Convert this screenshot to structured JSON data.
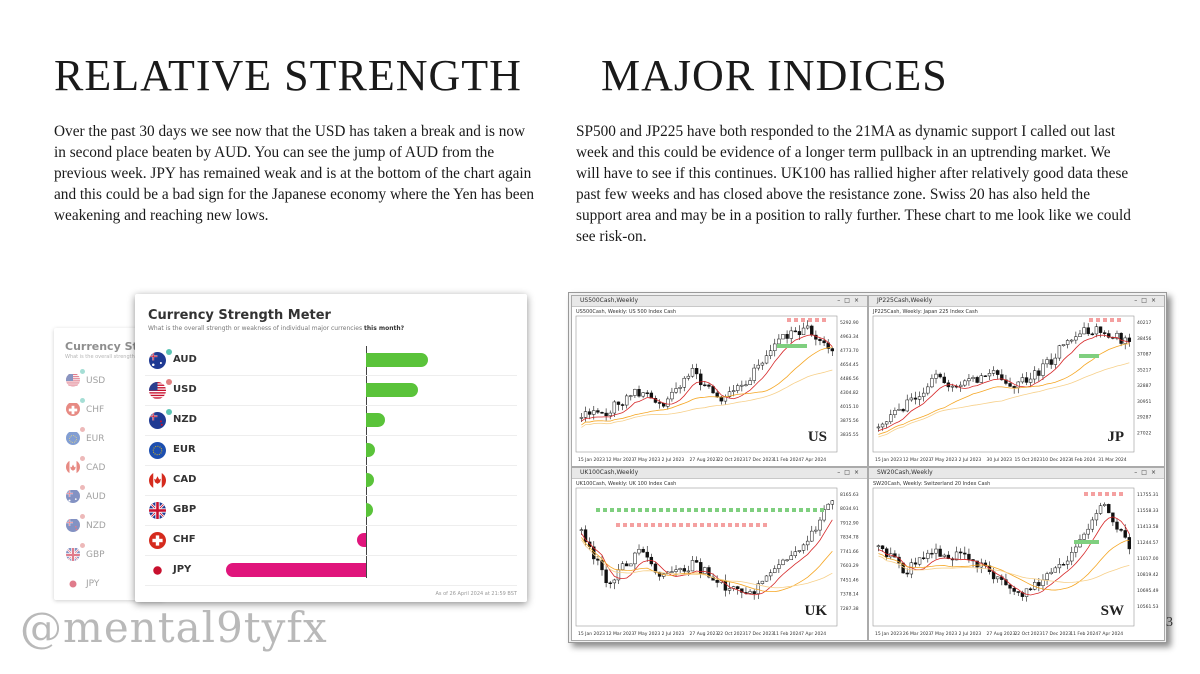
{
  "headings": {
    "left": "RELATIVE STRENGTH",
    "right": "MAJOR INDICES"
  },
  "paragraphs": {
    "left": "Over the past 30 days we see now that the USD has taken a break and is now in second place beaten by AUD.  You can see the jump of AUD from the previous week.   JPY has remained weak and is at the bottom of the chart again and this could be a bad sign for the Japanese economy where the Yen has been weakening and reaching new lows.",
    "right": "SP500 and JP225 have both responded to the 21MA as dynamic support I called out last week and this could be evidence of a longer term pullback in an uptrending market. We will have to see if this continues.  UK100 has rallied higher after relatively good data these past few weeks and has closed above the resistance zone. Swiss 20 has also held the support area and may be in a position to rally further.  These chart to me look like we could see risk-on."
  },
  "meter_back": {
    "title": "Currency Streng",
    "subtitle": "What is the overall strength or w",
    "rows": [
      {
        "code": "USD",
        "flag": "us",
        "dot": "#5cc4b4"
      },
      {
        "code": "CHF",
        "flag": "ch",
        "dot": "#5cc4b4"
      },
      {
        "code": "EUR",
        "flag": "eu",
        "dot": "#e08080"
      },
      {
        "code": "CAD",
        "flag": "ca",
        "dot": "#e08080"
      },
      {
        "code": "AUD",
        "flag": "au",
        "dot": "#e08080"
      },
      {
        "code": "NZD",
        "flag": "nz",
        "dot": "#e08080"
      },
      {
        "code": "GBP",
        "flag": "gb",
        "dot": "#e08080"
      },
      {
        "code": "JPY",
        "flag": "jp",
        "dot": ""
      }
    ]
  },
  "meter": {
    "title": "Currency Strength Meter",
    "subtitle": "What is the overall strength or weakness of individual major currencies",
    "subtitle_bold": "this month?",
    "as_of": "As of 26 April 2024 at 21:59 BST",
    "positive_color": "#5ac33a",
    "negative_color": "#e0157c",
    "rows": [
      {
        "code": "AUD",
        "flag": "au",
        "dot": "#5cc4b4",
        "strength": 62
      },
      {
        "code": "USD",
        "flag": "us",
        "dot": "#e08080",
        "strength": 52
      },
      {
        "code": "NZD",
        "flag": "nz",
        "dot": "#5cc4b4",
        "strength": 19
      },
      {
        "code": "EUR",
        "flag": "eu",
        "dot": "",
        "strength": 9
      },
      {
        "code": "CAD",
        "flag": "ca",
        "dot": "",
        "strength": 8
      },
      {
        "code": "GBP",
        "flag": "gb",
        "dot": "",
        "strength": 7
      },
      {
        "code": "CHF",
        "flag": "ch",
        "dot": "",
        "strength": -9
      },
      {
        "code": "JPY",
        "flag": "jp",
        "dot": "",
        "strength": -140
      }
    ]
  },
  "charts": [
    {
      "id": "us",
      "window_title": "US500Cash,Weekly",
      "subtitle": "US500Cash, Weekly:  US 500 Index Cash",
      "label": "US",
      "prices": [
        "5292.90",
        "4963.34",
        "4773.70",
        "4654.45",
        "4486.56",
        "4304.82",
        "4015.10",
        "3875.56",
        "3835.55"
      ],
      "dates": [
        "15 Jan 2023",
        "12 Mar 2023",
        "7 May 2023",
        "2 Jul 2023",
        "27 Aug 2023",
        "22 Oct 2023",
        "17 Dec 2023",
        "11 Feb 2024",
        "7 Apr 2024"
      ]
    },
    {
      "id": "jp",
      "window_title": "JP225Cash,Weekly",
      "subtitle": "JP225Cash, Weekly:  Japan 225 Index Cash",
      "label": "JP",
      "prices": [
        "40217",
        "38456",
        "37087",
        "35217",
        "32887",
        "30951",
        "29287",
        "27022"
      ],
      "dates": [
        "15 Jan 2023",
        "12 Mar 2023",
        "7 May 2023",
        "2 Jul 2023",
        "30 Jul 2023",
        "15 Oct 2023",
        "10 Dec 2023",
        "4 Feb 2024",
        "31 Mar 2024"
      ]
    },
    {
      "id": "uk",
      "window_title": "UK100Cash,Weekly",
      "subtitle": "UK100Cash, Weekly:  UK 100 Index Cash",
      "label": "UK",
      "prices": [
        "8165.63",
        "8034.91",
        "7912.90",
        "7834.78",
        "7741.66",
        "7603.29",
        "7451.46",
        "7378.14",
        "7287.38"
      ],
      "dates": [
        "15 Jan 2023",
        "12 Mar 2023",
        "7 May 2023",
        "2 Jul 2023",
        "27 Aug 2023",
        "22 Oct 2023",
        "17 Dec 2023",
        "11 Feb 2024",
        "7 Apr 2024"
      ]
    },
    {
      "id": "sw",
      "window_title": "SW20Cash,Weekly",
      "subtitle": "SW20Cash, Weekly:  Switzerland 20 Index Cash",
      "label": "SW",
      "prices": [
        "11755.31",
        "11558.33",
        "11413.58",
        "11244.57",
        "11017.00",
        "10819.42",
        "10695.49",
        "10561.53"
      ],
      "dates": [
        "15 Jan 2023",
        "26 Mar 2023",
        "7 May 2023",
        "2 Jul 2023",
        "27 Aug 2023",
        "22 Oct 2023",
        "17 Dec 2023",
        "11 Feb 2024",
        "7 Apr 2024"
      ]
    }
  ],
  "watermark": "@mental9tyfx",
  "page_number": "3"
}
